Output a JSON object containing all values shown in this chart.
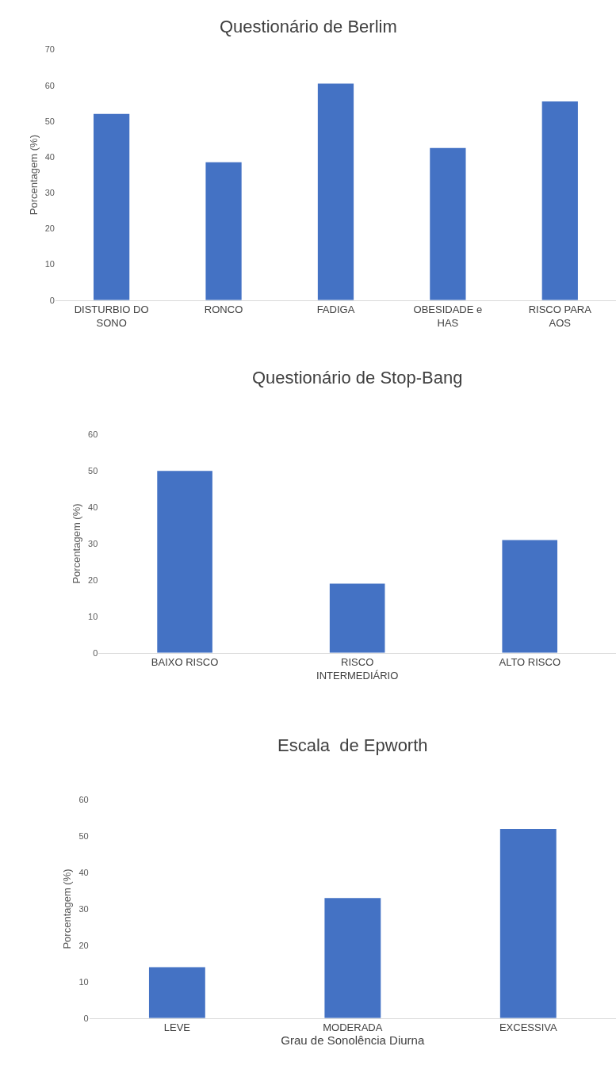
{
  "chart_data": [
    {
      "type": "bar",
      "title": "Questionário de Berlim",
      "ylabel": "Porcentagem (%)",
      "categories": [
        "DISTURBIO DO SONO",
        "RONCO",
        "FADIGA",
        "OBESIDADE e HAS",
        "RISCO PARA AOS"
      ],
      "values": [
        52,
        38.5,
        60.5,
        42.5,
        55.5
      ],
      "color": "#4472c4",
      "ylim": [
        0,
        70
      ],
      "yticks": [
        0,
        10,
        20,
        30,
        40,
        50,
        60,
        70
      ]
    },
    {
      "type": "bar",
      "title": "Questionário de Stop-Bang",
      "ylabel": "Porcentagem (%)",
      "categories": [
        "BAIXO RISCO",
        "RISCO INTERMEDIÁRIO",
        "ALTO RISCO"
      ],
      "values": [
        50,
        19,
        31
      ],
      "color": "#4472c4",
      "ylim": [
        0,
        60
      ],
      "yticks": [
        0,
        10,
        20,
        30,
        40,
        50,
        60
      ]
    },
    {
      "type": "bar",
      "title": "Escala  de Epworth",
      "xlabel": "Grau de Sonolência Diurna",
      "ylabel": "Porcentagem (%)",
      "categories": [
        "LEVE",
        "MODERADA",
        "EXCESSIVA"
      ],
      "values": [
        14,
        33,
        52
      ],
      "color": "#4472c4",
      "ylim": [
        0,
        60
      ],
      "yticks": [
        0,
        10,
        20,
        30,
        40,
        50,
        60
      ]
    }
  ]
}
